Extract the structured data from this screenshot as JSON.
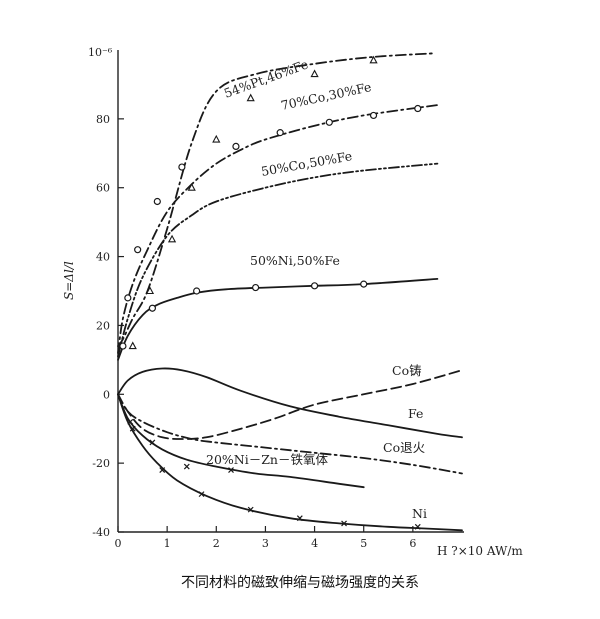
{
  "chart_data": {
    "type": "line",
    "title": "",
    "ylabel": "S=Δl/l",
    "xlabel": "H ?×10 AW/m",
    "y_top_label": "10⁻⁶",
    "xlim": [
      0,
      7
    ],
    "ylim": [
      -40,
      100
    ],
    "x_ticks": [
      0,
      1,
      2,
      3,
      4,
      5,
      6
    ],
    "y_ticks": [
      -40,
      -20,
      0,
      20,
      40,
      60,
      80
    ],
    "grid": false,
    "series": [
      {
        "name": "54%Pt,46%Fe",
        "label": "54%Pt,46%Fe",
        "style": "dashdot",
        "marker": "triangle",
        "x": [
          0,
          0.1,
          0.3,
          0.6,
          1.0,
          1.5,
          2.0,
          2.8,
          4.0,
          5.2,
          6.4
        ],
        "y": [
          14,
          16,
          22,
          30,
          48,
          73,
          88,
          93,
          96,
          98,
          99
        ],
        "marker_x": [
          0.3,
          0.65,
          1.1,
          1.5,
          2.0,
          2.7,
          4.0,
          5.2
        ],
        "marker_y": [
          14,
          30,
          45,
          60,
          74,
          86,
          93,
          97
        ]
      },
      {
        "name": "70%Co,30%Fe",
        "label": "70%Co,30%Fe",
        "style": "dashdot",
        "marker": "circle",
        "x": [
          0,
          0.1,
          0.3,
          0.6,
          1.0,
          1.5,
          2.0,
          2.5,
          3.0,
          4.0,
          5.0,
          6.5
        ],
        "y": [
          12,
          22,
          32,
          42,
          53,
          61,
          67,
          71,
          74,
          78,
          81,
          84
        ],
        "marker_x": [
          0.2,
          0.4,
          0.8,
          1.3,
          2.4,
          3.3,
          4.3,
          5.2,
          6.1
        ],
        "marker_y": [
          28,
          42,
          56,
          66,
          72,
          76,
          79,
          81,
          83
        ]
      },
      {
        "name": "50%Co,50%Fe",
        "label": "50%Co,50%Fe",
        "style": "dashdotdot",
        "marker": "none",
        "x": [
          0,
          0.2,
          0.5,
          1.0,
          1.5,
          2.0,
          3.0,
          4.0,
          5.0,
          6.5
        ],
        "y": [
          11,
          22,
          34,
          46,
          52,
          56,
          60,
          63,
          65,
          67
        ],
        "marker_x": [],
        "marker_y": []
      },
      {
        "name": "50%Ni,50%Fe",
        "label": "50%Ni,50%Fe",
        "style": "solid",
        "marker": "circle",
        "x": [
          0,
          0.2,
          0.5,
          0.8,
          1.2,
          1.6,
          2.2,
          3.0,
          4.0,
          5.0,
          6.5
        ],
        "y": [
          10,
          17,
          23,
          26,
          28,
          29.5,
          30.5,
          31,
          31.5,
          32,
          33.5
        ],
        "marker_x": [
          0.1,
          0.7,
          1.6,
          2.8,
          4.0,
          5.0
        ],
        "marker_y": [
          14,
          25,
          30,
          31,
          31.5,
          32
        ],
        "clip_xmax": 5.3
      },
      {
        "name": "Co铸",
        "label": "Co铸",
        "style": "dashed",
        "marker": "none",
        "x": [
          0,
          0.2,
          0.5,
          0.9,
          1.3,
          1.8,
          2.5,
          3.2,
          4.0,
          5.0,
          6.0,
          7.0
        ],
        "y": [
          0,
          -5,
          -10,
          -12.5,
          -13,
          -12.5,
          -10,
          -7,
          -3,
          0,
          3,
          7
        ],
        "marker_x": [],
        "marker_y": []
      },
      {
        "name": "Fe",
        "label": "Fe",
        "style": "solid",
        "marker": "none",
        "x": [
          0,
          0.2,
          0.5,
          0.9,
          1.3,
          1.8,
          2.5,
          3.5,
          4.5,
          5.5,
          6.5,
          7.0
        ],
        "y": [
          0,
          4,
          6.5,
          7.5,
          7,
          5,
          1,
          -3.5,
          -6.5,
          -9,
          -11.5,
          -12.5
        ],
        "marker_x": [],
        "marker_y": []
      },
      {
        "name": "Co退火",
        "label": "Co退火",
        "style": "dashdot",
        "marker": "none",
        "x": [
          0,
          0.2,
          0.5,
          1.0,
          1.5,
          2.0,
          3.0,
          4.0,
          5.0,
          6.0,
          7.0
        ],
        "y": [
          0,
          -5,
          -8,
          -11,
          -13,
          -14,
          -15.5,
          -17,
          -18.5,
          -20.5,
          -23
        ],
        "marker_x": [],
        "marker_y": []
      },
      {
        "name": "20%Ni-Zn-铁氧体",
        "label": "20%Ni－Zn－铁氧体",
        "style": "solid",
        "marker": "x",
        "x": [
          0,
          0.2,
          0.5,
          0.9,
          1.4,
          2.0,
          2.8,
          3.5,
          4.5,
          5.0
        ],
        "y": [
          0,
          -7,
          -12,
          -16,
          -19,
          -21,
          -23,
          -24,
          -26,
          -27
        ],
        "marker_x": [
          0.25,
          0.7,
          1.4,
          2.3
        ],
        "marker_y": [
          -8,
          -14,
          -21,
          -22
        ],
        "clip_xmax": 5.0
      },
      {
        "name": "Ni",
        "label": "Ni",
        "style": "solid",
        "marker": "x",
        "x": [
          0,
          0.2,
          0.5,
          0.8,
          1.2,
          1.8,
          2.5,
          3.5,
          4.5,
          5.5,
          6.3,
          7.0
        ],
        "y": [
          0,
          -8,
          -15,
          -20,
          -25,
          -29.5,
          -33,
          -36,
          -37.5,
          -38.5,
          -39,
          -39.5
        ],
        "marker_x": [
          0.3,
          0.9,
          1.7,
          2.7,
          3.7,
          4.6,
          6.1
        ],
        "marker_y": [
          -10,
          -22,
          -29,
          -33.5,
          -36,
          -37.5,
          -38.5
        ]
      }
    ],
    "caption": "不同材料的磁致伸缩与磁场强度的关系"
  }
}
